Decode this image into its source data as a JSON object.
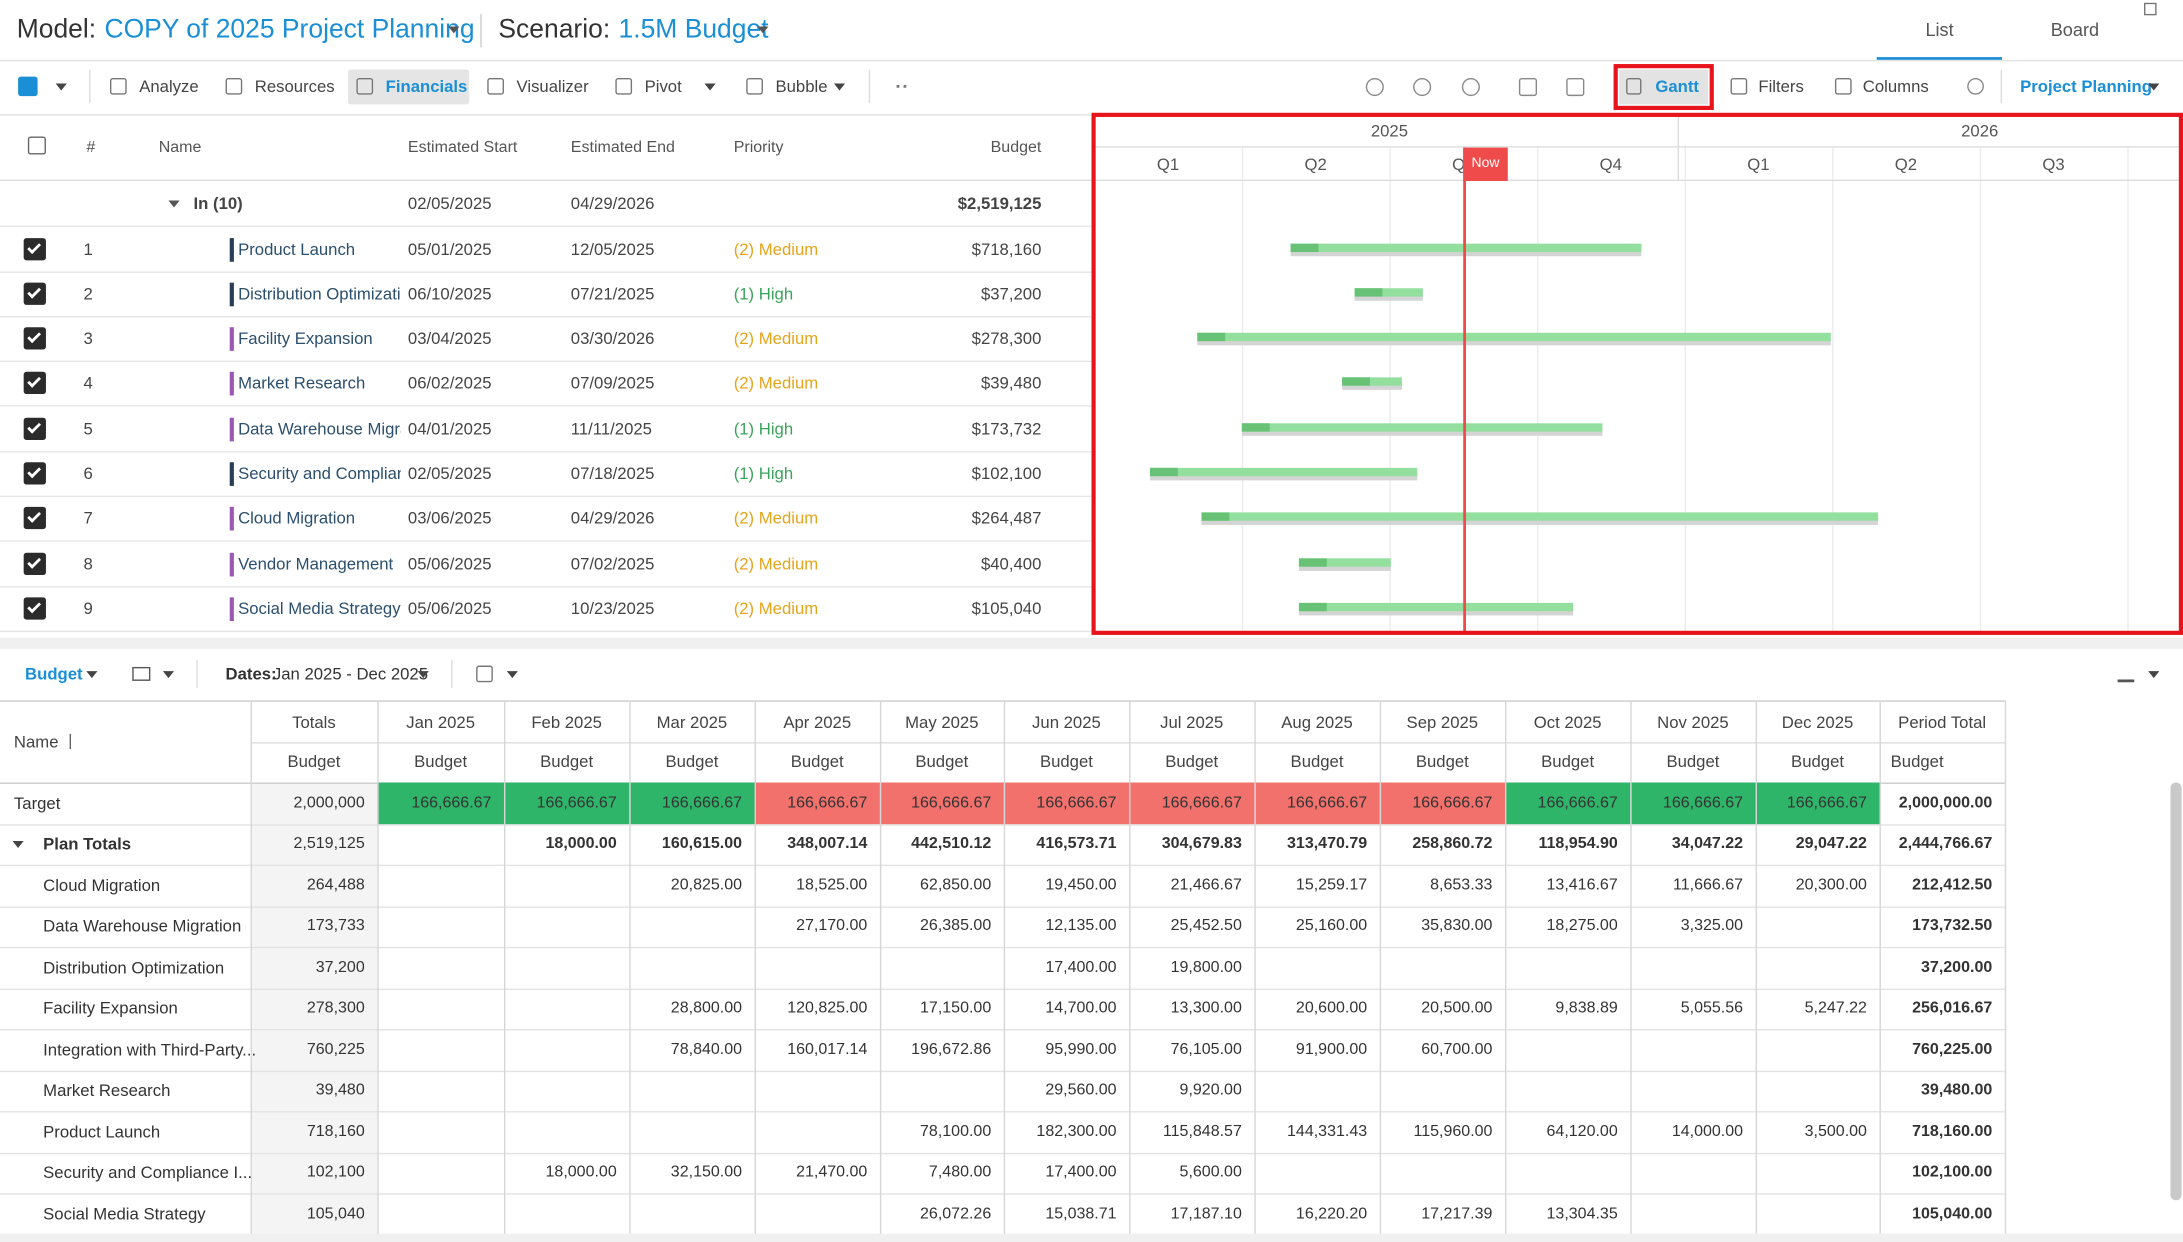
{
  "header": {
    "model_label": "Model:",
    "model": "COPY of 2025 Project Planning",
    "scenario_label": "Scenario:",
    "scenario": "1.5M Budget",
    "tabs": [
      "List",
      "Board"
    ]
  },
  "toolbar": {
    "left": [
      "Analyze",
      "Resources",
      "Financials",
      "Visualizer",
      "Pivot",
      "Bubble"
    ],
    "right": [
      "Gantt",
      "Filters",
      "Columns"
    ],
    "view": "Project Planning"
  },
  "grid": {
    "columns": [
      "#",
      "Name",
      "Estimated Start",
      "Estimated End",
      "Priority",
      "Budget"
    ],
    "group": {
      "label": "In (10)",
      "start": "02/05/2025",
      "end": "04/29/2026",
      "budget": "$2,519,125"
    },
    "rows": [
      {
        "num": 1,
        "name": "Product Launch",
        "start": "05/01/2025",
        "end": "12/05/2025",
        "priority": "(2) Medium",
        "budget": "$718,160",
        "color": "#2b3d55"
      },
      {
        "num": 2,
        "name": "Distribution Optimizati",
        "start": "06/10/2025",
        "end": "07/21/2025",
        "priority": "(1) High",
        "budget": "$37,200",
        "color": "#2b3d55"
      },
      {
        "num": 3,
        "name": "Facility Expansion",
        "start": "03/04/2025",
        "end": "03/30/2026",
        "priority": "(2) Medium",
        "budget": "$278,300",
        "color": "#9b59b6"
      },
      {
        "num": 4,
        "name": "Market Research",
        "start": "06/02/2025",
        "end": "07/09/2025",
        "priority": "(2) Medium",
        "budget": "$39,480",
        "color": "#9b59b6"
      },
      {
        "num": 5,
        "name": "Data Warehouse Migra",
        "start": "04/01/2025",
        "end": "11/11/2025",
        "priority": "(1) High",
        "budget": "$173,732",
        "color": "#9b59b6"
      },
      {
        "num": 6,
        "name": "Security and Complian",
        "start": "02/05/2025",
        "end": "07/18/2025",
        "priority": "(1) High",
        "budget": "$102,100",
        "color": "#2b3d55"
      },
      {
        "num": 7,
        "name": "Cloud Migration",
        "start": "03/06/2025",
        "end": "04/29/2026",
        "priority": "(2) Medium",
        "budget": "$264,487",
        "color": "#9b59b6"
      },
      {
        "num": 8,
        "name": "Vendor Management",
        "start": "05/06/2025",
        "end": "07/02/2025",
        "priority": "(2) Medium",
        "budget": "$40,400",
        "color": "#9b59b6"
      },
      {
        "num": 9,
        "name": "Social Media Strategy",
        "start": "05/06/2025",
        "end": "10/23/2025",
        "priority": "(2) Medium",
        "budget": "$105,040",
        "color": "#9b59b6"
      }
    ]
  },
  "gantt": {
    "years": [
      "2025",
      "2026"
    ],
    "quarters": [
      "Q1",
      "Q2",
      "Q3",
      "Q4",
      "Q1",
      "Q2",
      "Q3"
    ],
    "now": "Now"
  },
  "budget_panel": {
    "measure": "Budget",
    "dates_label": "Dates:",
    "dates": "Jan 2025 - Dec 2025",
    "table": {
      "name_header": "Name",
      "columns": [
        "Totals",
        "Jan 2025",
        "Feb 2025",
        "Mar 2025",
        "Apr 2025",
        "May 2025",
        "Jun 2025",
        "Jul 2025",
        "Aug 2025",
        "Sep 2025",
        "Oct 2025",
        "Nov 2025",
        "Dec 2025",
        "Period Total"
      ],
      "subheaders": [
        "Budget",
        "Budget",
        "Budget",
        "Budget",
        "Budget",
        "Budget",
        "Budget",
        "Budget",
        "Budget",
        "Budget",
        "Budget",
        "Budget",
        "Budget",
        "Budget"
      ],
      "rows": [
        {
          "name": "Target",
          "cells": [
            "2,000,000",
            "166,666.67",
            "166,666.67",
            "166,666.67",
            "166,666.67",
            "166,666.67",
            "166,666.67",
            "166,666.67",
            "166,666.67",
            "166,666.67",
            "166,666.67",
            "166,666.67",
            "166,666.67",
            "2,000,000.00"
          ],
          "colors": [
            "#2fb56a",
            "#2fb56a",
            "#2fb56a",
            "#f2716d",
            "#f2716d",
            "#f2716d",
            "#f2716d",
            "#f2716d",
            "#f2716d",
            "#2fb56a",
            "#2fb56a",
            "#2fb56a"
          ]
        },
        {
          "name": "Plan Totals",
          "cells": [
            "2,519,125",
            null,
            "18,000.00",
            "160,615.00",
            "348,007.14",
            "442,510.12",
            "416,573.71",
            "304,679.83",
            "313,470.79",
            "258,860.72",
            "118,954.90",
            "34,047.22",
            "29,047.22",
            "2,444,766.67"
          ]
        },
        {
          "name": "Cloud Migration",
          "cells": [
            "264,488",
            null,
            null,
            "20,825.00",
            "18,525.00",
            "62,850.00",
            "19,450.00",
            "21,466.67",
            "15,259.17",
            "8,653.33",
            "13,416.67",
            "11,666.67",
            "20,300.00",
            "212,412.50"
          ]
        },
        {
          "name": "Data Warehouse Migration",
          "cells": [
            "173,733",
            null,
            null,
            null,
            "27,170.00",
            "26,385.00",
            "12,135.00",
            "25,452.50",
            "25,160.00",
            "35,830.00",
            "18,275.00",
            "3,325.00",
            null,
            "173,732.50"
          ]
        },
        {
          "name": "Distribution Optimization",
          "cells": [
            "37,200",
            null,
            null,
            null,
            null,
            null,
            "17,400.00",
            "19,800.00",
            null,
            null,
            null,
            null,
            null,
            "37,200.00"
          ]
        },
        {
          "name": "Facility Expansion",
          "cells": [
            "278,300",
            null,
            null,
            "28,800.00",
            "120,825.00",
            "17,150.00",
            "14,700.00",
            "13,300.00",
            "20,600.00",
            "20,500.00",
            "9,838.89",
            "5,055.56",
            "5,247.22",
            "256,016.67"
          ]
        },
        {
          "name": "Integration with Third-Party...",
          "cells": [
            "760,225",
            null,
            null,
            "78,840.00",
            "160,017.14",
            "196,672.86",
            "95,990.00",
            "76,105.00",
            "91,900.00",
            "60,700.00",
            null,
            null,
            null,
            "760,225.00"
          ]
        },
        {
          "name": "Market Research",
          "cells": [
            "39,480",
            null,
            null,
            null,
            null,
            null,
            "29,560.00",
            "9,920.00",
            null,
            null,
            null,
            null,
            null,
            "39,480.00"
          ]
        },
        {
          "name": "Product Launch",
          "cells": [
            "718,160",
            null,
            null,
            null,
            null,
            "78,100.00",
            "182,300.00",
            "115,848.57",
            "144,331.43",
            "115,960.00",
            "64,120.00",
            "14,000.00",
            "3,500.00",
            "718,160.00"
          ]
        },
        {
          "name": "Security and Compliance I...",
          "cells": [
            "102,100",
            null,
            "18,000.00",
            "32,150.00",
            "21,470.00",
            "7,480.00",
            "17,400.00",
            "5,600.00",
            null,
            null,
            null,
            null,
            null,
            "102,100.00"
          ]
        },
        {
          "name": "Social Media Strategy",
          "cells": [
            "105,040",
            null,
            null,
            null,
            null,
            "26,072.26",
            "15,038.71",
            "17,187.10",
            "16,220.20",
            "17,217.39",
            "13,304.35",
            null,
            null,
            "105,040.00"
          ]
        }
      ]
    }
  }
}
